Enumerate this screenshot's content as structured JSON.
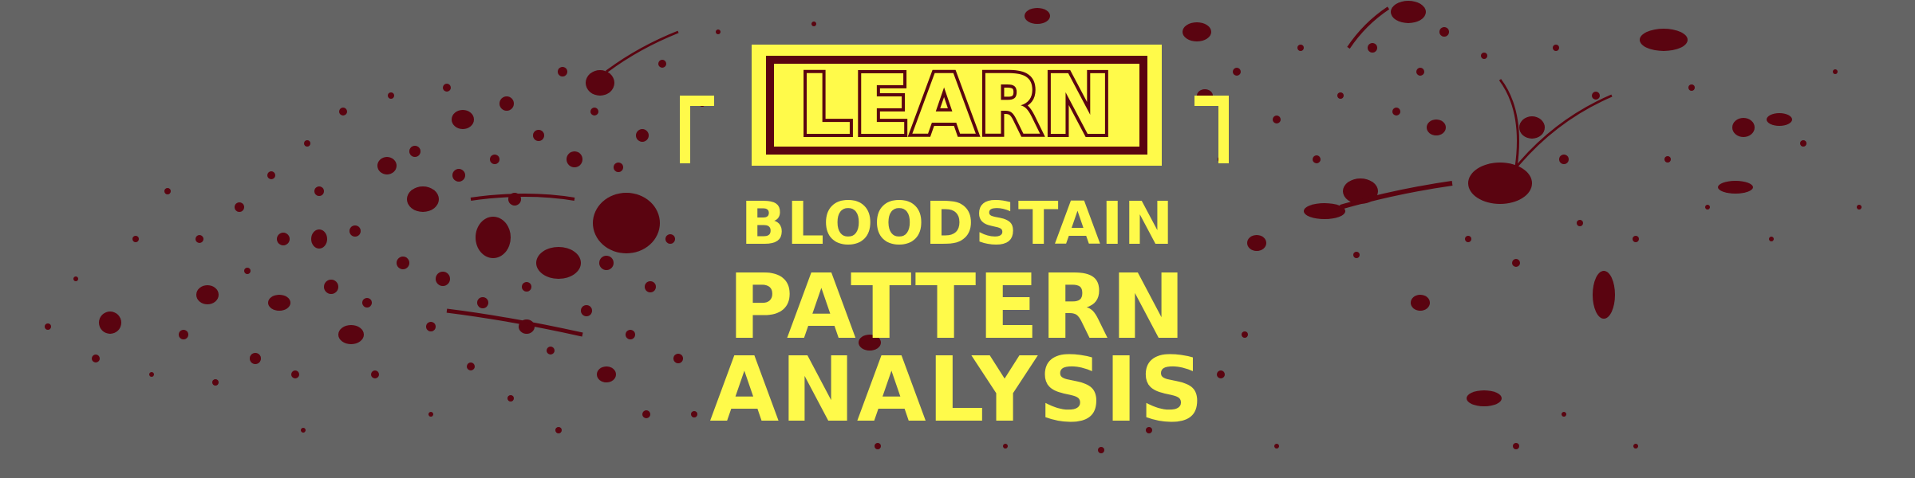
{
  "banner": {
    "badge_text": "LEARN",
    "title_line1": "BLOODSTAIN",
    "title_line2": "PATTERN",
    "title_line3": "ANALYSIS"
  },
  "colors": {
    "background": "#646464",
    "accent_yellow": "#fffa4a",
    "blood": "#5a0410"
  }
}
